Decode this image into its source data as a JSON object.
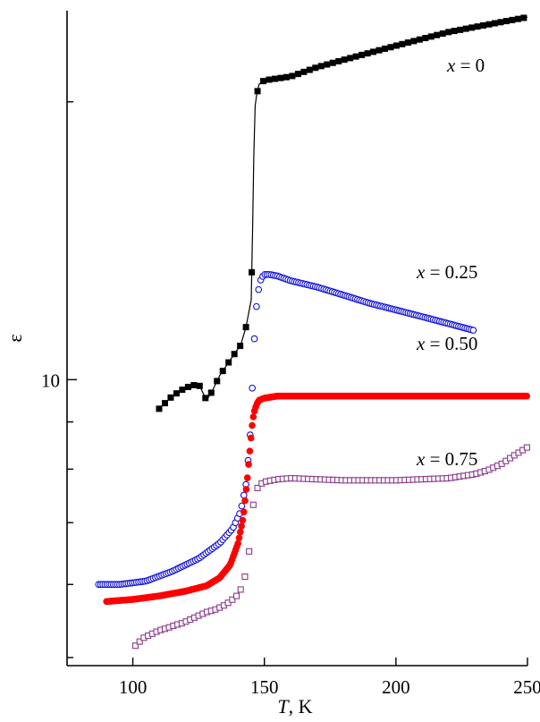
{
  "chart_data": {
    "type": "scatter",
    "title": "",
    "xlabel": "T, K",
    "ylabel": "ε",
    "xlim": [
      75,
      250
    ],
    "x_ticks": [
      100,
      150,
      200,
      250
    ],
    "y_tick_labels": [
      "10"
    ],
    "y_scale": "log",
    "ylim": [
      4.9,
      25.1
    ],
    "y_minor_ticks": [
      5,
      6,
      7,
      8,
      9,
      10,
      20
    ],
    "grid": false,
    "legend": "none",
    "series": [
      {
        "name": "x = 0",
        "color": "#000000",
        "marker": "filled-square",
        "connected": true,
        "x": [
          110,
          115,
          120,
          125,
          128,
          130,
          133,
          136,
          139,
          141,
          143,
          145,
          145.5,
          146,
          146.5,
          147,
          148,
          150,
          160,
          170,
          180,
          190,
          200,
          210,
          220,
          230,
          240,
          250
        ],
        "y": [
          9.3,
          9.6,
          9.8,
          9.9,
          9.5,
          9.7,
          10.1,
          10.4,
          10.7,
          10.9,
          11.4,
          12.2,
          14.5,
          17.5,
          19.8,
          20.3,
          20.9,
          21.1,
          21.3,
          21.8,
          22.2,
          22.6,
          23.0,
          23.4,
          23.8,
          24.1,
          24.4,
          24.7
        ]
      },
      {
        "name": "x = 0.25",
        "color": "#1010d8",
        "marker": "open-circle",
        "connected": false,
        "x": [
          87,
          95,
          105,
          115,
          125,
          133,
          138,
          141,
          143,
          144,
          145,
          145.5,
          146,
          146.5,
          147,
          147.5,
          148,
          148.5,
          149,
          150,
          152,
          155,
          160,
          170,
          180,
          190,
          200,
          210,
          220,
          230
        ],
        "y": [
          6.0,
          6.0,
          6.05,
          6.2,
          6.4,
          6.65,
          6.9,
          7.2,
          7.7,
          8.3,
          9.0,
          10.0,
          10.8,
          11.5,
          12.0,
          12.4,
          12.6,
          12.8,
          12.9,
          13.0,
          13.0,
          12.95,
          12.8,
          12.6,
          12.35,
          12.1,
          11.9,
          11.7,
          11.5,
          11.3
        ]
      },
      {
        "name": "x = 0.50",
        "color": "#ff0000",
        "marker": "filled-circle",
        "connected": false,
        "x": [
          90,
          100,
          110,
          120,
          128,
          133,
          137,
          140,
          142,
          143.5,
          144.5,
          145.3,
          146,
          147,
          148,
          150,
          155,
          160,
          170,
          180,
          200,
          220,
          240,
          250
        ],
        "y": [
          5.75,
          5.78,
          5.83,
          5.9,
          5.98,
          6.1,
          6.3,
          6.65,
          7.1,
          7.8,
          8.4,
          8.9,
          9.2,
          9.4,
          9.5,
          9.55,
          9.6,
          9.6,
          9.6,
          9.6,
          9.6,
          9.6,
          9.6,
          9.6
        ]
      },
      {
        "name": "x = 0.75",
        "color": "#8a3a8a",
        "marker": "open-square",
        "connected": false,
        "x": [
          101,
          104,
          107,
          110,
          113,
          116,
          119,
          122,
          125,
          128,
          131,
          134,
          137,
          140,
          142,
          144,
          145,
          146,
          147,
          148,
          149,
          150,
          155,
          160,
          170,
          180,
          190,
          200,
          210,
          220,
          230,
          235,
          240,
          245,
          250
        ],
        "y": [
          5.15,
          5.25,
          5.3,
          5.35,
          5.38,
          5.42,
          5.45,
          5.5,
          5.55,
          5.6,
          5.63,
          5.68,
          5.75,
          5.85,
          6.0,
          6.4,
          7.0,
          7.4,
          7.6,
          7.68,
          7.72,
          7.75,
          7.8,
          7.82,
          7.8,
          7.78,
          7.78,
          7.78,
          7.8,
          7.82,
          7.9,
          7.98,
          8.1,
          8.28,
          8.45
        ]
      }
    ]
  }
}
